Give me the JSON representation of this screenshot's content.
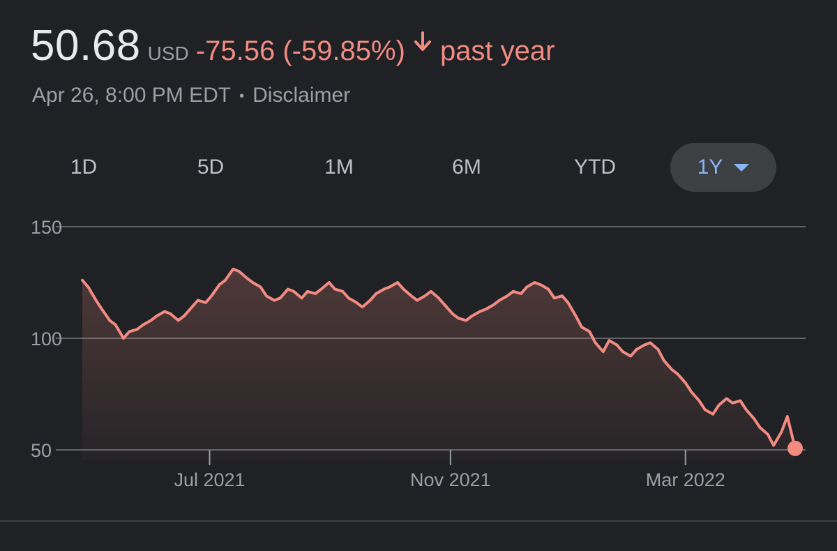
{
  "header": {
    "price": "50.68",
    "currency": "USD",
    "change": "-75.56 (-59.85%)",
    "period": "past year",
    "timestamp": "Apr 26, 8:00 PM EDT",
    "separator": "•",
    "disclaimer": "Disclaimer"
  },
  "colors": {
    "negative": "#f28b82",
    "accent": "#8ab4f8",
    "background": "#202124"
  },
  "ranges": {
    "items": [
      {
        "label": "1D"
      },
      {
        "label": "5D"
      },
      {
        "label": "1M"
      },
      {
        "label": "6M"
      },
      {
        "label": "YTD"
      },
      {
        "label": "1Y"
      }
    ],
    "selected": "1Y"
  },
  "chart_data": {
    "type": "area",
    "x_range": [
      "2021-04-27",
      "2022-04-26"
    ],
    "ylim": [
      50,
      150
    ],
    "y_ticks": [
      150,
      100,
      50
    ],
    "x_ticks": [
      {
        "date": "2021-07-01",
        "label": "Jul 2021"
      },
      {
        "date": "2021-11-01",
        "label": "Nov 2021"
      },
      {
        "date": "2022-03-01",
        "label": "Mar 2022"
      }
    ],
    "grid": true,
    "series": [
      {
        "values": [
          [
            "2021-04-27",
            126
          ],
          [
            "2021-04-30",
            123
          ],
          [
            "2021-05-04",
            117
          ],
          [
            "2021-05-07",
            113
          ],
          [
            "2021-05-11",
            108
          ],
          [
            "2021-05-14",
            106
          ],
          [
            "2021-05-18",
            100
          ],
          [
            "2021-05-21",
            103
          ],
          [
            "2021-05-25",
            104
          ],
          [
            "2021-05-28",
            106
          ],
          [
            "2021-06-01",
            108
          ],
          [
            "2021-06-04",
            110
          ],
          [
            "2021-06-08",
            112
          ],
          [
            "2021-06-11",
            111
          ],
          [
            "2021-06-15",
            108
          ],
          [
            "2021-06-18",
            110
          ],
          [
            "2021-06-22",
            114
          ],
          [
            "2021-06-25",
            117
          ],
          [
            "2021-06-29",
            116
          ],
          [
            "2021-07-02",
            119
          ],
          [
            "2021-07-06",
            124
          ],
          [
            "2021-07-09",
            126
          ],
          [
            "2021-07-13",
            131
          ],
          [
            "2021-07-16",
            130
          ],
          [
            "2021-07-20",
            127
          ],
          [
            "2021-07-23",
            125
          ],
          [
            "2021-07-27",
            123
          ],
          [
            "2021-07-30",
            119
          ],
          [
            "2021-08-03",
            117
          ],
          [
            "2021-08-06",
            118
          ],
          [
            "2021-08-10",
            122
          ],
          [
            "2021-08-13",
            121
          ],
          [
            "2021-08-17",
            118
          ],
          [
            "2021-08-20",
            121
          ],
          [
            "2021-08-24",
            120
          ],
          [
            "2021-08-27",
            122
          ],
          [
            "2021-08-31",
            125
          ],
          [
            "2021-09-03",
            122
          ],
          [
            "2021-09-07",
            121
          ],
          [
            "2021-09-10",
            118
          ],
          [
            "2021-09-14",
            116
          ],
          [
            "2021-09-17",
            114
          ],
          [
            "2021-09-21",
            117
          ],
          [
            "2021-09-24",
            120
          ],
          [
            "2021-09-28",
            122
          ],
          [
            "2021-10-01",
            123
          ],
          [
            "2021-10-05",
            125
          ],
          [
            "2021-10-08",
            122
          ],
          [
            "2021-10-12",
            119
          ],
          [
            "2021-10-15",
            117
          ],
          [
            "2021-10-19",
            119
          ],
          [
            "2021-10-22",
            121
          ],
          [
            "2021-10-26",
            118
          ],
          [
            "2021-10-29",
            115
          ],
          [
            "2021-11-02",
            111
          ],
          [
            "2021-11-05",
            109
          ],
          [
            "2021-11-09",
            108
          ],
          [
            "2021-11-12",
            110
          ],
          [
            "2021-11-16",
            112
          ],
          [
            "2021-11-19",
            113
          ],
          [
            "2021-11-23",
            115
          ],
          [
            "2021-11-26",
            117
          ],
          [
            "2021-11-30",
            119
          ],
          [
            "2021-12-03",
            121
          ],
          [
            "2021-12-07",
            120
          ],
          [
            "2021-12-10",
            123
          ],
          [
            "2021-12-14",
            125
          ],
          [
            "2021-12-17",
            124
          ],
          [
            "2021-12-21",
            122
          ],
          [
            "2021-12-24",
            118
          ],
          [
            "2021-12-28",
            119
          ],
          [
            "2021-12-31",
            116
          ],
          [
            "2022-01-04",
            110
          ],
          [
            "2022-01-07",
            105
          ],
          [
            "2022-01-11",
            103
          ],
          [
            "2022-01-14",
            98
          ],
          [
            "2022-01-18",
            94
          ],
          [
            "2022-01-21",
            99
          ],
          [
            "2022-01-25",
            97
          ],
          [
            "2022-01-28",
            94
          ],
          [
            "2022-02-01",
            92
          ],
          [
            "2022-02-04",
            95
          ],
          [
            "2022-02-08",
            97
          ],
          [
            "2022-02-11",
            98
          ],
          [
            "2022-02-15",
            95
          ],
          [
            "2022-02-18",
            90
          ],
          [
            "2022-02-22",
            86
          ],
          [
            "2022-02-25",
            84
          ],
          [
            "2022-03-01",
            80
          ],
          [
            "2022-03-04",
            76
          ],
          [
            "2022-03-08",
            72
          ],
          [
            "2022-03-11",
            68
          ],
          [
            "2022-03-15",
            66
          ],
          [
            "2022-03-18",
            70
          ],
          [
            "2022-03-22",
            73
          ],
          [
            "2022-03-25",
            71
          ],
          [
            "2022-03-29",
            72
          ],
          [
            "2022-04-01",
            68
          ],
          [
            "2022-04-05",
            64
          ],
          [
            "2022-04-08",
            60
          ],
          [
            "2022-04-12",
            57
          ],
          [
            "2022-04-15",
            52
          ],
          [
            "2022-04-19",
            58
          ],
          [
            "2022-04-22",
            65
          ],
          [
            "2022-04-26",
            50.68
          ]
        ]
      }
    ]
  }
}
